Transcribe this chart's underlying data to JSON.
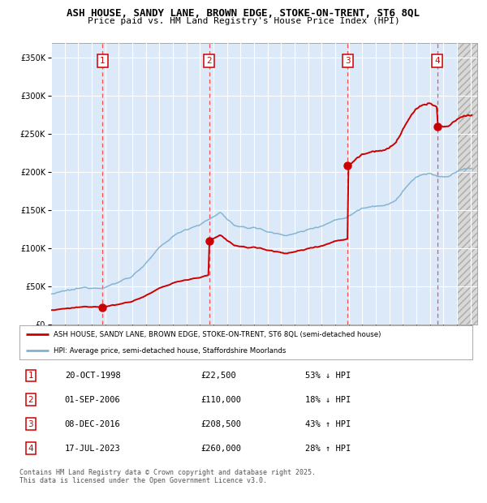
{
  "title_line1": "ASH HOUSE, SANDY LANE, BROWN EDGE, STOKE-ON-TRENT, ST6 8QL",
  "title_line2": "Price paid vs. HM Land Registry's House Price Index (HPI)",
  "legend_label_red": "ASH HOUSE, SANDY LANE, BROWN EDGE, STOKE-ON-TRENT, ST6 8QL (semi-detached house)",
  "legend_label_blue": "HPI: Average price, semi-detached house, Staffordshire Moorlands",
  "footer": "Contains HM Land Registry data © Crown copyright and database right 2025.\nThis data is licensed under the Open Government Licence v3.0.",
  "transactions": [
    {
      "num": 1,
      "date": "20-OCT-1998",
      "price": 22500,
      "pct": "53%",
      "dir": "↓",
      "year": 1998.8
    },
    {
      "num": 2,
      "date": "01-SEP-2006",
      "price": 110000,
      "pct": "18%",
      "dir": "↓",
      "year": 2006.67
    },
    {
      "num": 3,
      "date": "08-DEC-2016",
      "price": 208500,
      "pct": "43%",
      "dir": "↑",
      "year": 2016.93
    },
    {
      "num": 4,
      "date": "17-JUL-2023",
      "price": 260000,
      "pct": "28%",
      "dir": "↑",
      "year": 2023.54
    }
  ],
  "ylim": [
    0,
    370000
  ],
  "xlim_start": 1995.0,
  "xlim_end": 2026.5,
  "bg_color": "#dce9f8",
  "red_color": "#cc0000",
  "blue_color": "#7fb3d3",
  "grid_color": "#ffffff",
  "dashed_color": "#ff4444",
  "hpi_anchors": [
    [
      1995.0,
      40000
    ],
    [
      1996.0,
      42000
    ],
    [
      1997.0,
      44000
    ],
    [
      1998.0,
      46000
    ],
    [
      1999.0,
      50000
    ],
    [
      2000.0,
      56000
    ],
    [
      2001.0,
      65000
    ],
    [
      2002.0,
      82000
    ],
    [
      2003.0,
      100000
    ],
    [
      2004.0,
      115000
    ],
    [
      2005.0,
      125000
    ],
    [
      2006.0,
      133000
    ],
    [
      2007.0,
      142000
    ],
    [
      2007.5,
      148000
    ],
    [
      2008.5,
      132000
    ],
    [
      2009.5,
      125000
    ],
    [
      2010.0,
      128000
    ],
    [
      2011.0,
      122000
    ],
    [
      2012.0,
      118000
    ],
    [
      2013.0,
      120000
    ],
    [
      2014.0,
      125000
    ],
    [
      2015.0,
      132000
    ],
    [
      2016.0,
      140000
    ],
    [
      2016.9,
      145000
    ],
    [
      2017.5,
      152000
    ],
    [
      2018.0,
      158000
    ],
    [
      2019.0,
      163000
    ],
    [
      2020.0,
      165000
    ],
    [
      2020.5,
      170000
    ],
    [
      2021.0,
      182000
    ],
    [
      2021.5,
      192000
    ],
    [
      2022.0,
      198000
    ],
    [
      2022.5,
      202000
    ],
    [
      2023.0,
      204000
    ],
    [
      2023.5,
      200000
    ],
    [
      2024.0,
      198000
    ],
    [
      2024.5,
      200000
    ],
    [
      2025.0,
      205000
    ],
    [
      2025.5,
      208000
    ],
    [
      2026.0,
      210000
    ]
  ]
}
